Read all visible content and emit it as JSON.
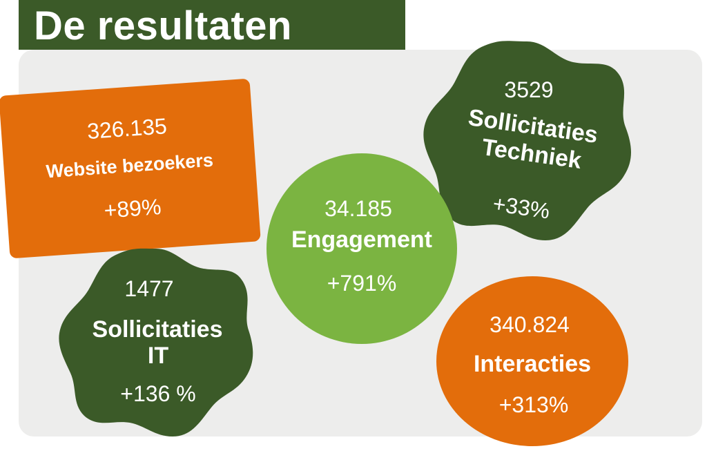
{
  "title": "De resultaten",
  "colors": {
    "dark_green": "#3b5a28",
    "light_green": "#7bb441",
    "orange": "#e36d0b",
    "panel": "#ededec"
  },
  "stats": {
    "website": {
      "value": "326.135",
      "label": "Website bezoekers",
      "change": "+89%"
    },
    "engagement": {
      "value": "34.185",
      "label": "Engagement",
      "change": "+791%"
    },
    "techniek": {
      "value": "3529",
      "label_line1": "Sollicitaties",
      "label_line2": "Techniek",
      "change": "+33%"
    },
    "it": {
      "value": "1477",
      "label_line1": "Sollicitaties",
      "label_line2": "IT",
      "change": "+136 %"
    },
    "interacties": {
      "value": "340.824",
      "label": "Interacties",
      "change": "+313%"
    }
  }
}
